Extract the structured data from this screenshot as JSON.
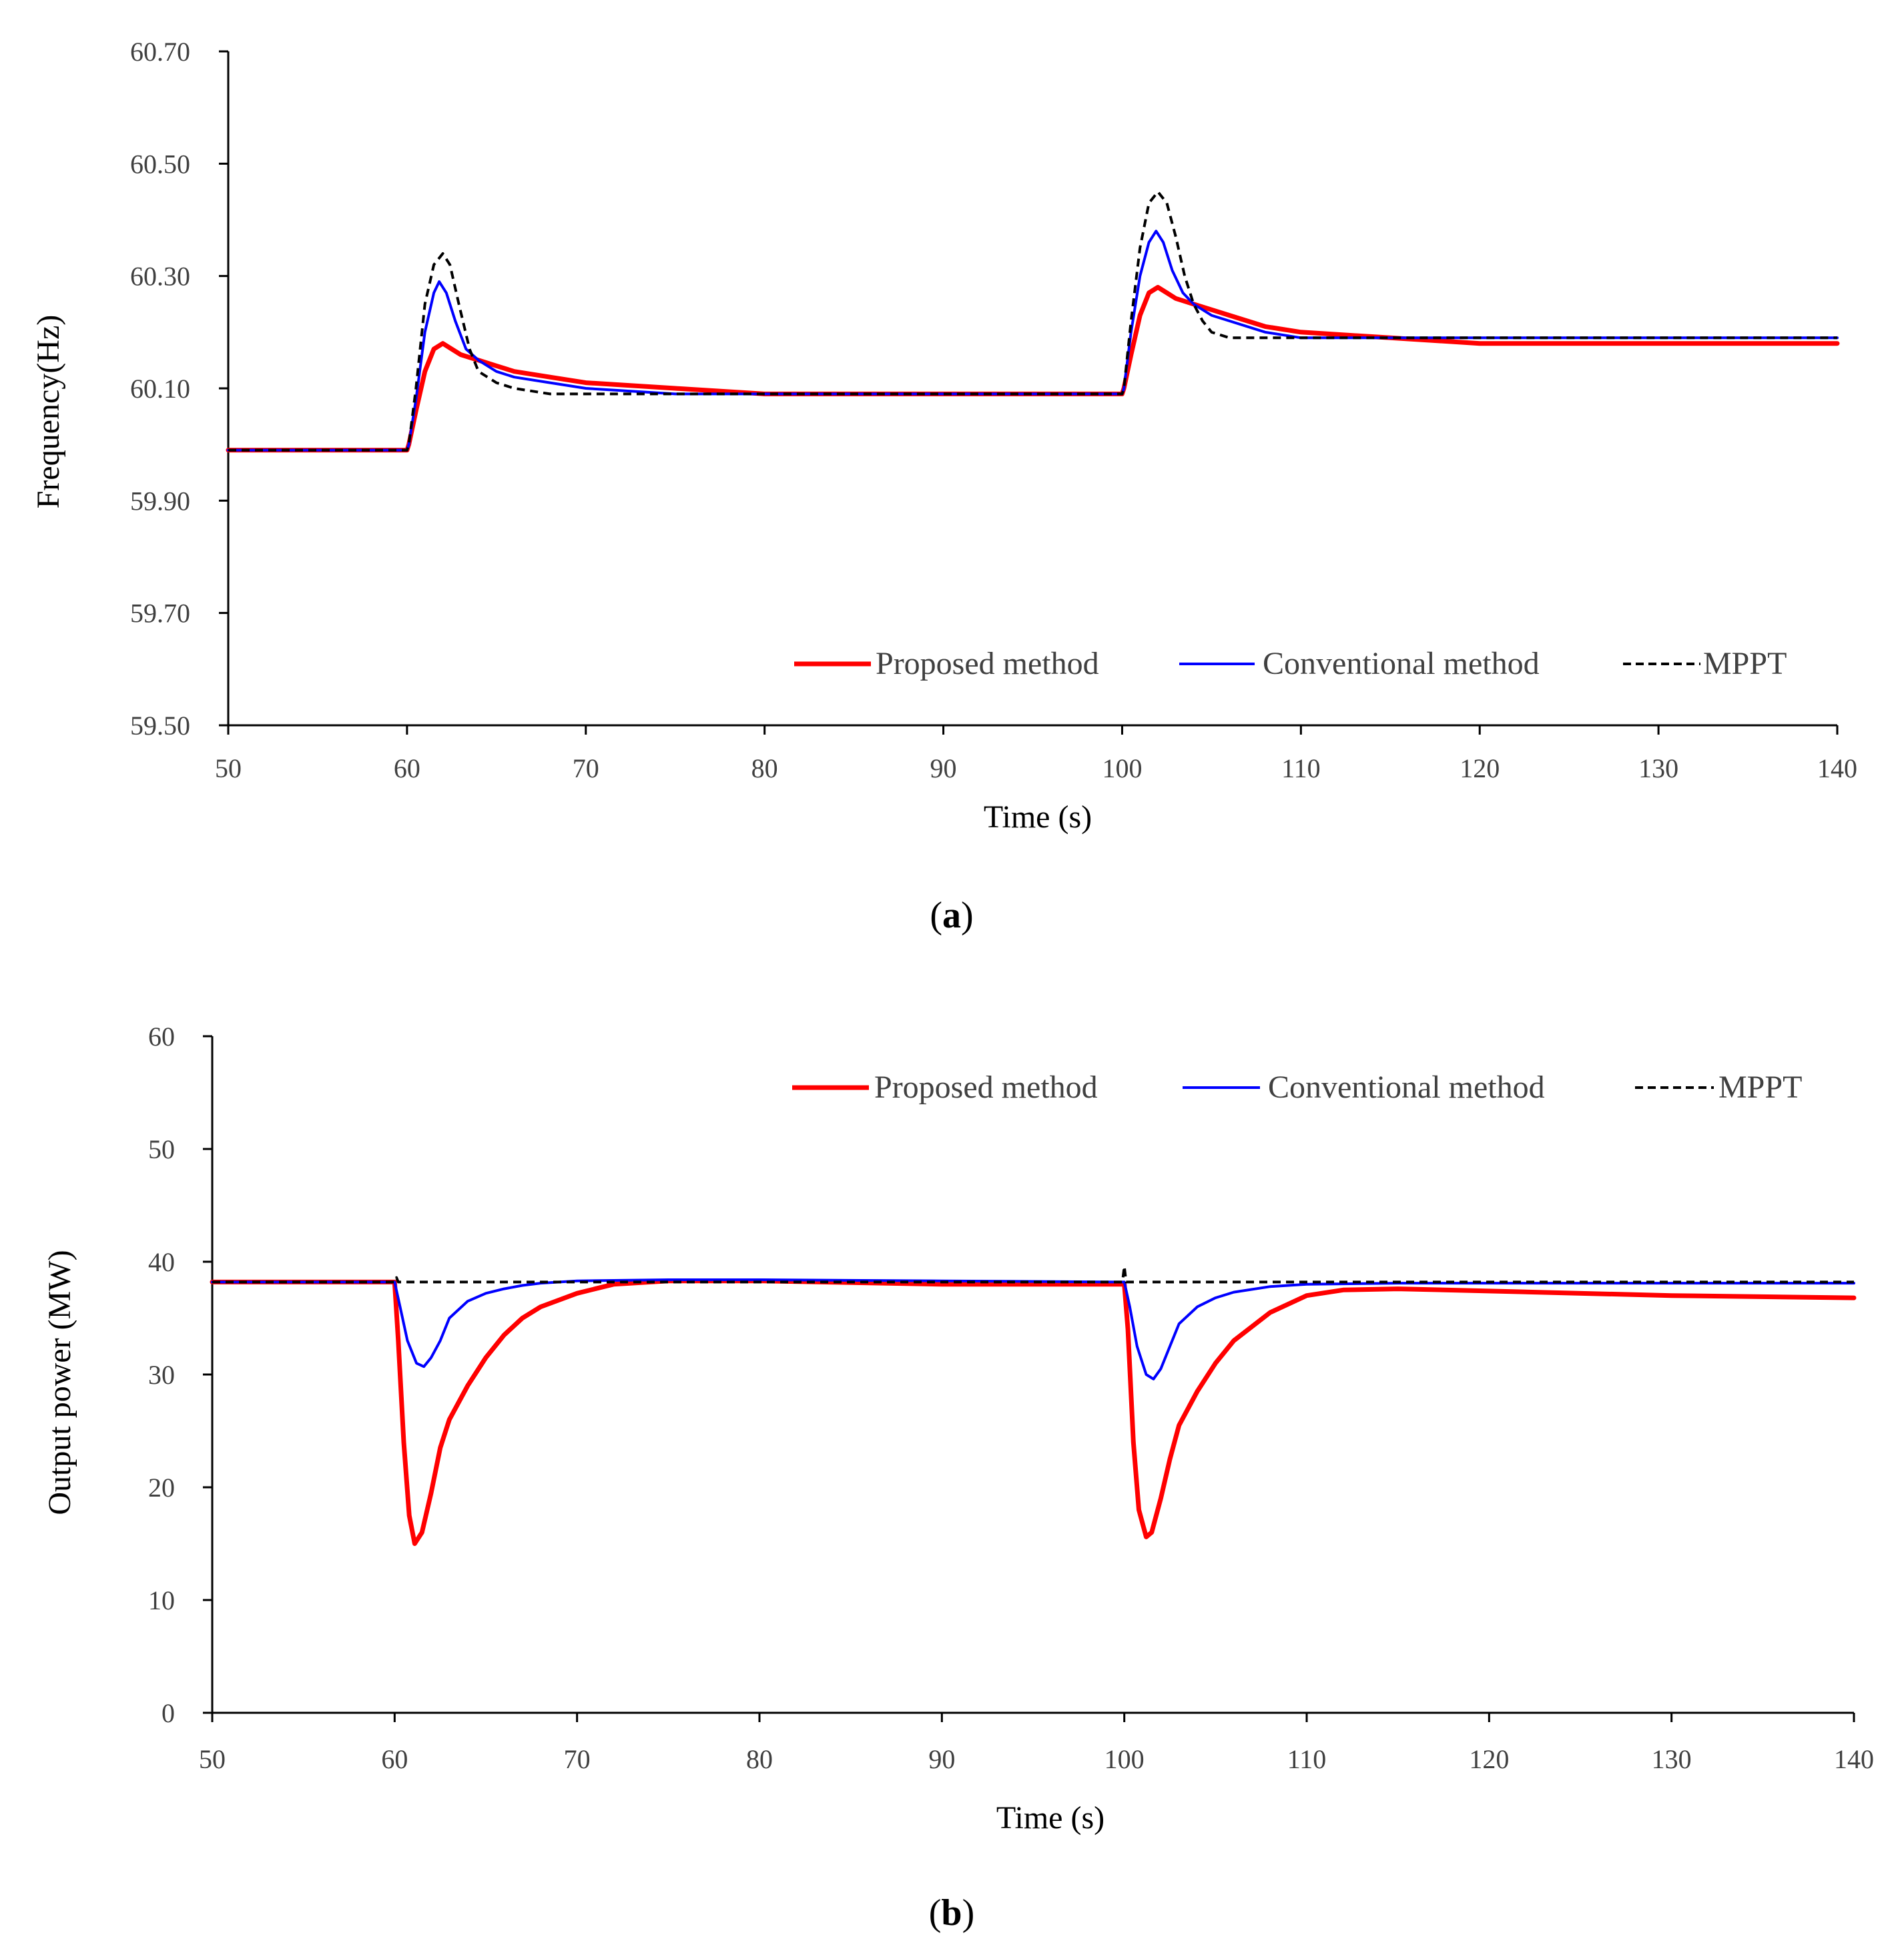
{
  "colors": {
    "proposed": "#ff0000",
    "conventional": "#0000ff",
    "mppt": "#000000",
    "axis": "#000000",
    "text": "#404040"
  },
  "chart_data": [
    {
      "type": "line",
      "panel_label": "a",
      "xlabel": "Time (s)",
      "ylabel": "Frequency(Hz)",
      "xlim": [
        50,
        140
      ],
      "ylim": [
        59.5,
        60.7
      ],
      "x_ticks": [
        "50",
        "60",
        "70",
        "80",
        "90",
        "100",
        "110",
        "120",
        "130",
        "140"
      ],
      "y_ticks": [
        "59.50",
        "59.70",
        "59.90",
        "60.10",
        "60.30",
        "60.50",
        "60.70"
      ],
      "grid": false,
      "legend_position": "bottom-right",
      "legend": [
        "Proposed method",
        "Conventional method",
        "MPPT"
      ],
      "series": [
        {
          "name": "Proposed method",
          "style": "solid-thick",
          "x": [
            50,
            60,
            60.1,
            60.5,
            61,
            61.5,
            62,
            62.5,
            63,
            64,
            65,
            66,
            68,
            70,
            75,
            80,
            90,
            100,
            100.1,
            100.5,
            101,
            101.5,
            102,
            102.5,
            103,
            104,
            105,
            106,
            108,
            110,
            115,
            120,
            130,
            140
          ],
          "y": [
            59.99,
            59.99,
            60.0,
            60.06,
            60.13,
            60.17,
            60.18,
            60.17,
            60.16,
            60.15,
            60.14,
            60.13,
            60.12,
            60.11,
            60.1,
            60.09,
            60.09,
            60.09,
            60.1,
            60.16,
            60.23,
            60.27,
            60.28,
            60.27,
            60.26,
            60.25,
            60.24,
            60.23,
            60.21,
            60.2,
            60.19,
            60.18,
            60.18,
            60.18
          ]
        },
        {
          "name": "Conventional method",
          "style": "solid",
          "x": [
            50,
            60,
            60.1,
            60.5,
            61,
            61.5,
            61.8,
            62.2,
            62.7,
            63.3,
            64,
            65,
            66,
            68,
            70,
            75,
            80,
            90,
            100,
            100.1,
            100.5,
            101,
            101.5,
            101.9,
            102.3,
            102.8,
            103.4,
            104,
            105,
            106,
            108,
            110,
            115,
            120,
            130,
            140
          ],
          "y": [
            59.99,
            59.99,
            60.0,
            60.08,
            60.2,
            60.27,
            60.29,
            60.27,
            60.22,
            60.17,
            60.15,
            60.13,
            60.12,
            60.11,
            60.1,
            60.09,
            60.09,
            60.09,
            60.09,
            60.1,
            60.2,
            60.3,
            60.36,
            60.38,
            60.36,
            60.31,
            60.27,
            60.25,
            60.23,
            60.22,
            60.2,
            60.19,
            60.19,
            60.19,
            60.19,
            60.19
          ]
        },
        {
          "name": "MPPT",
          "style": "dashed",
          "x": [
            50,
            60,
            60.1,
            60.5,
            61,
            61.5,
            62,
            62.4,
            62.9,
            63.5,
            64,
            65,
            66,
            68,
            70,
            75,
            80,
            90,
            100,
            100.1,
            100.5,
            101,
            101.5,
            102,
            102.5,
            103,
            103.5,
            104,
            104.5,
            105,
            106,
            108,
            110,
            120,
            130,
            140
          ],
          "y": [
            59.99,
            59.99,
            60.0,
            60.1,
            60.25,
            60.32,
            60.34,
            60.32,
            60.25,
            60.17,
            60.13,
            60.11,
            60.1,
            60.09,
            60.09,
            60.09,
            60.09,
            60.09,
            60.09,
            60.1,
            60.22,
            60.35,
            60.43,
            60.45,
            60.43,
            60.37,
            60.3,
            60.25,
            60.22,
            60.2,
            60.19,
            60.19,
            60.19,
            60.19,
            60.19,
            60.19
          ]
        }
      ]
    },
    {
      "type": "line",
      "panel_label": "b",
      "xlabel": "Time (s)",
      "ylabel": "Output power (MW)",
      "xlim": [
        50,
        140
      ],
      "ylim": [
        0,
        60
      ],
      "x_ticks": [
        "50",
        "60",
        "70",
        "80",
        "90",
        "100",
        "110",
        "120",
        "130",
        "140"
      ],
      "y_ticks": [
        "0",
        "10",
        "20",
        "30",
        "40",
        "50",
        "60"
      ],
      "grid": false,
      "legend_position": "top-right",
      "legend": [
        "Proposed method",
        "Conventional method",
        "MPPT"
      ],
      "series": [
        {
          "name": "Proposed method",
          "style": "solid-thick",
          "x": [
            50,
            60,
            60.2,
            60.5,
            60.8,
            61.1,
            61.5,
            62,
            62.5,
            63,
            64,
            65,
            66,
            67,
            68,
            70,
            72,
            75,
            80,
            90,
            100,
            100.2,
            100.5,
            100.8,
            101.2,
            101.5,
            102,
            102.5,
            103,
            104,
            105,
            106,
            108,
            110,
            112,
            115,
            120,
            130,
            140
          ],
          "y": [
            38.2,
            38.2,
            33,
            24,
            17.5,
            15,
            16,
            19.5,
            23.5,
            26,
            29,
            31.5,
            33.5,
            35,
            36,
            37.2,
            38,
            38.3,
            38.3,
            38,
            38,
            34,
            24,
            18,
            15.6,
            16,
            19,
            22.5,
            25.5,
            28.5,
            31,
            33,
            35.5,
            37,
            37.5,
            37.6,
            37.4,
            37,
            36.8
          ]
        },
        {
          "name": "Conventional method",
          "style": "solid",
          "x": [
            50,
            60,
            60.3,
            60.7,
            61.2,
            61.6,
            62,
            62.5,
            63,
            64,
            65,
            66,
            67,
            68,
            70,
            75,
            80,
            90,
            100,
            100.3,
            100.7,
            101.2,
            101.6,
            102,
            102.5,
            103,
            104,
            105,
            106,
            108,
            110,
            115,
            120,
            130,
            140
          ],
          "y": [
            38.2,
            38.2,
            36,
            33,
            31,
            30.7,
            31.5,
            33,
            35,
            36.5,
            37.2,
            37.6,
            37.9,
            38.1,
            38.3,
            38.4,
            38.4,
            38.3,
            38.2,
            36,
            32.5,
            30,
            29.6,
            30.5,
            32.5,
            34.5,
            36,
            36.8,
            37.3,
            37.8,
            38,
            38.1,
            38.1,
            38.1,
            38.1
          ]
        },
        {
          "name": "MPPT",
          "style": "dashed",
          "x": [
            50,
            60,
            60.1,
            60.2,
            99.9,
            100,
            100.1,
            140
          ],
          "y": [
            38.2,
            38.2,
            38.6,
            38.2,
            38.2,
            39.6,
            38.2,
            38.2
          ]
        }
      ]
    }
  ]
}
